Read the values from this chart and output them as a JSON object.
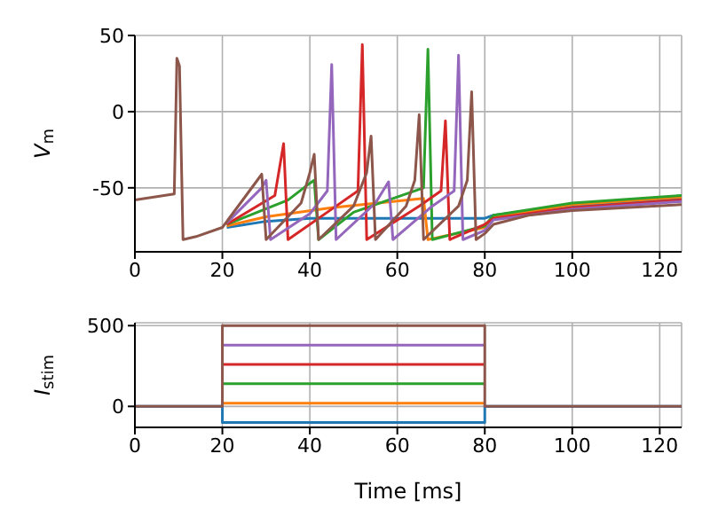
{
  "chart_data": [
    {
      "type": "line",
      "ylabel": "V$_{m}$",
      "xlim": [
        0,
        125
      ],
      "xticks": [
        0,
        20,
        40,
        60,
        80,
        100,
        120
      ],
      "ylim": [
        -92,
        50
      ],
      "yticks": [
        -50,
        0,
        50
      ],
      "grid": true,
      "marker": "none",
      "line_style": "solid",
      "series": [
        {
          "color": "#1f77b4",
          "x": [
            21,
            30,
            40,
            80,
            82,
            100,
            125
          ],
          "values": [
            -76,
            -72,
            -70,
            -70,
            -68,
            -62,
            -57
          ]
        },
        {
          "color": "#ff7f0e",
          "x": [
            21,
            30,
            45,
            66,
            67,
            80,
            82,
            100,
            125
          ],
          "values": [
            -75,
            -69,
            -63,
            -57,
            -84,
            -76,
            -69,
            -61,
            -56
          ]
        },
        {
          "color": "#2ca02c",
          "x": [
            21,
            35,
            40,
            41,
            42,
            50,
            60,
            66,
            67,
            68,
            80,
            82,
            100,
            125
          ],
          "values": [
            -74,
            -58,
            -47,
            -45,
            -84,
            -66,
            -56,
            -50,
            41,
            -84,
            -75,
            -68,
            -60,
            -55
          ]
        },
        {
          "color": "#d62728",
          "x": [
            21,
            32,
            34,
            35,
            45,
            51,
            52,
            53,
            65,
            70,
            71,
            72,
            80,
            82,
            100,
            125
          ],
          "values": [
            -74,
            -55,
            -21,
            -84,
            -64,
            -52,
            44,
            -84,
            -62,
            -52,
            -6,
            -84,
            -74,
            -70,
            -63,
            -58
          ]
        },
        {
          "color": "#9467bd",
          "x": [
            21,
            29,
            30,
            31,
            40,
            44,
            45,
            46,
            55,
            58,
            59,
            68,
            73,
            74,
            75,
            80,
            82,
            100,
            125
          ],
          "values": [
            -73,
            -50,
            -45,
            -84,
            -67,
            -52,
            31,
            -84,
            -60,
            -46,
            -84,
            -62,
            -52,
            37,
            -84,
            -78,
            -71,
            -64,
            -59
          ]
        },
        {
          "color": "#8c564b",
          "x": [
            0,
            9,
            9.6,
            10.2,
            11,
            14,
            20,
            28,
            29,
            30,
            38,
            40,
            41,
            42,
            50,
            53,
            54,
            55,
            62,
            64,
            65,
            66,
            74,
            76,
            77,
            78,
            80,
            82,
            90,
            100,
            125
          ],
          "values": [
            -58,
            -54,
            35,
            30,
            -84,
            -82,
            -76,
            -45,
            -41,
            -84,
            -60,
            -40,
            -28,
            -84,
            -62,
            -40,
            -16,
            -84,
            -62,
            -45,
            -2,
            -84,
            -62,
            -45,
            13,
            -84,
            -80,
            -74,
            -68,
            -65,
            -61
          ]
        }
      ]
    },
    {
      "type": "step",
      "xlabel": "Time [ms]",
      "ylabel": "I$_{stim}$",
      "xlim": [
        0,
        125
      ],
      "xticks": [
        0,
        20,
        40,
        60,
        80,
        100,
        120
      ],
      "ylim": [
        -130,
        518
      ],
      "yticks": [
        0,
        500
      ],
      "grid": true,
      "marker": "none",
      "line_style": "solid",
      "series": [
        {
          "color": "#1f77b4",
          "x": [
            0,
            20,
            80,
            125
          ],
          "values": [
            0,
            -100,
            0,
            0
          ]
        },
        {
          "color": "#ff7f0e",
          "x": [
            20,
            80
          ],
          "values": [
            20,
            20
          ]
        },
        {
          "color": "#2ca02c",
          "x": [
            20,
            80
          ],
          "values": [
            140,
            140
          ]
        },
        {
          "color": "#d62728",
          "x": [
            20,
            80
          ],
          "values": [
            260,
            260
          ]
        },
        {
          "color": "#9467bd",
          "x": [
            20,
            80
          ],
          "values": [
            380,
            380
          ]
        },
        {
          "color": "#8c564b",
          "x": [
            0,
            20,
            80,
            125
          ],
          "values": [
            0,
            500,
            0,
            0
          ]
        }
      ]
    }
  ]
}
